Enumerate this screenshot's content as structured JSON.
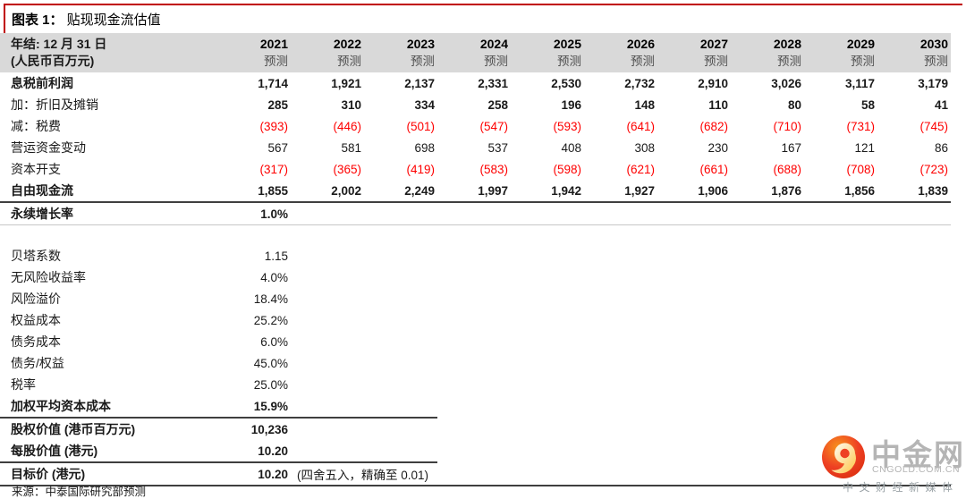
{
  "title": {
    "prefix": "图表 1：",
    "text": " 贴现现金流估值"
  },
  "colors": {
    "negative": "#fe0000",
    "header_band": "#d9d9d9",
    "border_red": "#c00000",
    "rule_dark": "#3f3f3f"
  },
  "chart_data": {
    "type": "table",
    "title": "贴现现金流估值",
    "header": {
      "label_line1": "年结: 12 月 31 日",
      "label_line2": "(人民币百万元)",
      "years": [
        "2021",
        "2022",
        "2023",
        "2024",
        "2025",
        "2026",
        "2027",
        "2028",
        "2029",
        "2030"
      ],
      "sub_label": "预测"
    },
    "forecast_rows": [
      {
        "label": "息税前利润",
        "values": [
          "1,714",
          "1,921",
          "2,137",
          "2,331",
          "2,530",
          "2,732",
          "2,910",
          "3,026",
          "3,117",
          "3,179"
        ],
        "lb": true,
        "vb": true,
        "red": false
      },
      {
        "label": "加：折旧及摊销",
        "values": [
          "285",
          "310",
          "334",
          "258",
          "196",
          "148",
          "110",
          "80",
          "58",
          "41"
        ],
        "lb": false,
        "vb": true,
        "red": false
      },
      {
        "label": "减：税费",
        "values": [
          "(393)",
          "(446)",
          "(501)",
          "(547)",
          "(593)",
          "(641)",
          "(682)",
          "(710)",
          "(731)",
          "(745)"
        ],
        "lb": false,
        "vb": false,
        "red": true
      },
      {
        "label": "营运资金变动",
        "values": [
          "567",
          "581",
          "698",
          "537",
          "408",
          "308",
          "230",
          "167",
          "121",
          "86"
        ],
        "lb": false,
        "vb": false,
        "red": false
      },
      {
        "label": "资本开支",
        "values": [
          "(317)",
          "(365)",
          "(419)",
          "(583)",
          "(598)",
          "(621)",
          "(661)",
          "(688)",
          "(708)",
          "(723)"
        ],
        "lb": false,
        "vb": false,
        "red": true
      },
      {
        "label": "自由现金流",
        "values": [
          "1,855",
          "2,002",
          "2,249",
          "1,997",
          "1,942",
          "1,927",
          "1,906",
          "1,876",
          "1,856",
          "1,839"
        ],
        "lb": true,
        "vb": true,
        "red": false,
        "rule": "full-dark"
      }
    ],
    "single_rows": [
      {
        "label": "永续增长率",
        "value": "1.0%",
        "lb": true,
        "vb": true,
        "rule": "full-light",
        "gap_after": true
      },
      {
        "label": "贝塔系数",
        "value": "1.15",
        "lb": false,
        "vb": false
      },
      {
        "label": "无风险收益率",
        "value": "4.0%",
        "lb": false,
        "vb": false
      },
      {
        "label": "风险溢价",
        "value": "18.4%",
        "lb": false,
        "vb": false
      },
      {
        "label": "权益成本",
        "value": "25.2%",
        "lb": false,
        "vb": false
      },
      {
        "label": "债务成本",
        "value": "6.0%",
        "lb": false,
        "vb": false
      },
      {
        "label": "债务/权益",
        "value": "45.0%",
        "lb": false,
        "vb": false
      },
      {
        "label": "税率",
        "value": "25.0%",
        "lb": false,
        "vb": false
      },
      {
        "label": "加权平均资本成本",
        "value": "15.9%",
        "lb": true,
        "vb": true,
        "rule": "partial-dark"
      },
      {
        "label": "股权价值 (港币百万元)",
        "value": "10,236",
        "lb": true,
        "vb": true
      },
      {
        "label": "每股价值 (港元)",
        "value": "10.20",
        "lb": true,
        "vb": true,
        "rule": "partial-dark"
      },
      {
        "label": "目标价 (港元)",
        "value": "10.20",
        "lb": true,
        "vb": true,
        "note": "(四舍五入，精确至 0.01)",
        "rule": "full-dark"
      }
    ]
  },
  "source": "来源：中泰国际研究部预测",
  "logo": {
    "name": "中金网",
    "domain": "CNGOLD.COM.CN",
    "tagline": "中文财经新媒体"
  }
}
